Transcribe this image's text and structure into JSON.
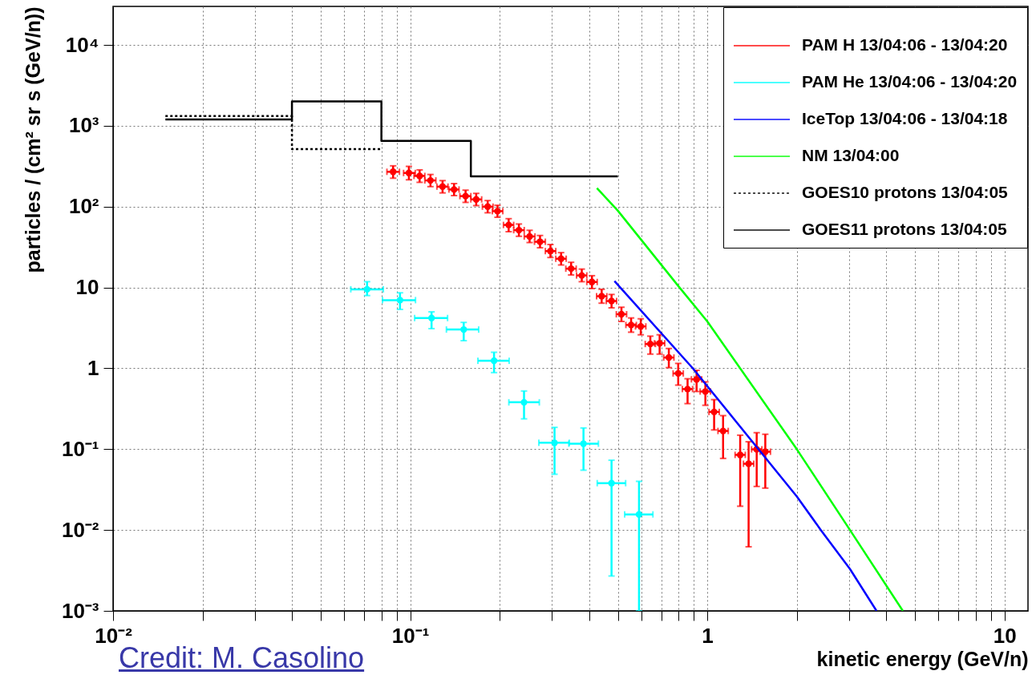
{
  "chart_data": {
    "type": "scatter",
    "xlabel": "kinetic energy (GeV/n)",
    "ylabel": "particles / (cm² sr s (GeV/n))",
    "annotations": [
      "Credit: M. Casolino"
    ],
    "log": "xy",
    "grid": true,
    "legend": "top right",
    "xlim": [
      0.01,
      12
    ],
    "xticks": [
      {
        "value": 0.01,
        "label": "10⁻²"
      },
      {
        "value": 0.02,
        "label": null
      },
      {
        "value": 0.03,
        "label": null
      },
      {
        "value": 0.04,
        "label": null
      },
      {
        "value": 0.05,
        "label": null
      },
      {
        "value": 0.06,
        "label": null
      },
      {
        "value": 0.07,
        "label": null
      },
      {
        "value": 0.08,
        "label": null
      },
      {
        "value": 0.09,
        "label": null
      },
      {
        "value": 0.1,
        "label": "10⁻¹"
      },
      {
        "value": 0.2,
        "label": null
      },
      {
        "value": 0.3,
        "label": null
      },
      {
        "value": 0.4,
        "label": null
      },
      {
        "value": 0.5,
        "label": null
      },
      {
        "value": 0.6,
        "label": null
      },
      {
        "value": 0.7,
        "label": null
      },
      {
        "value": 0.8,
        "label": null
      },
      {
        "value": 0.9,
        "label": null
      },
      1,
      {
        "value": 2,
        "label": null
      },
      {
        "value": 3,
        "label": null
      },
      {
        "value": 4,
        "label": null
      },
      {
        "value": 5,
        "label": null
      },
      {
        "value": 6,
        "label": null
      },
      {
        "value": 7,
        "label": null
      },
      {
        "value": 8,
        "label": null
      },
      {
        "value": 9,
        "label": null
      },
      10
    ],
    "ylim": [
      0.001,
      30000
    ],
    "yticks": [
      {
        "value": 0.001,
        "label": "10⁻³"
      },
      {
        "value": 0.01,
        "label": "10⁻²"
      },
      {
        "value": 0.1,
        "label": "10⁻¹"
      },
      1,
      10,
      {
        "value": 100,
        "label": "10²"
      },
      {
        "value": 1000,
        "label": "10³"
      },
      {
        "value": 10000,
        "label": "10⁴"
      }
    ],
    "series": [
      {
        "name": "PAM H 13/04:06 - 13/04:20",
        "color": "#ff0000",
        "x": [
          0.0876,
          0.099,
          0.1076,
          0.117,
          0.1285,
          0.1405,
          0.1536,
          0.1668,
          0.1823,
          0.1967,
          0.2145,
          0.2322,
          0.2523,
          0.2735,
          0.2965,
          0.322,
          0.348,
          0.378,
          0.409,
          0.441,
          0.476,
          0.514,
          0.554,
          0.597,
          0.643,
          0.691,
          0.742,
          0.798,
          0.858,
          0.92,
          0.985,
          1.054,
          1.13,
          1.29,
          1.377,
          1.466,
          1.567
        ],
        "values": [
          270,
          261,
          240,
          211,
          177,
          163,
          135,
          123,
          100,
          88,
          59.4,
          51.2,
          42.8,
          36.8,
          28.2,
          22.7,
          17.1,
          14.1,
          11.7,
          7.8,
          6.8,
          4.67,
          3.44,
          3.3,
          2.0,
          2.04,
          1.36,
          0.865,
          0.554,
          0.731,
          0.517,
          0.289,
          0.168,
          0.085,
          0.066,
          0.0995,
          0.093
        ],
        "errors": [
          [
            225,
            320
          ],
          [
            215,
            315
          ],
          [
            200,
            285
          ],
          [
            177,
            250
          ],
          [
            148,
            210
          ],
          [
            137,
            193
          ],
          [
            113,
            160
          ],
          [
            103,
            146
          ],
          [
            84,
            119
          ],
          [
            74,
            104
          ],
          [
            49,
            71
          ],
          [
            43,
            61
          ],
          [
            36,
            51
          ],
          [
            31,
            44
          ],
          [
            23.5,
            34
          ],
          [
            19,
            27
          ],
          [
            14.3,
            20.5
          ],
          [
            11.8,
            16.9
          ],
          [
            9.7,
            14
          ],
          [
            6.4,
            9.5
          ],
          [
            5.6,
            8.2
          ],
          [
            3.8,
            5.7
          ],
          [
            2.8,
            4.2
          ],
          [
            2.6,
            4.1
          ],
          [
            1.5,
            2.5
          ],
          [
            1.5,
            2.6
          ],
          [
            1.02,
            1.76
          ],
          [
            0.62,
            1.15
          ],
          [
            0.366,
            0.743
          ],
          [
            0.517,
            0.944
          ],
          [
            0.349,
            0.68
          ],
          [
            0.173,
            0.41
          ],
          [
            0.0769,
            0.26
          ],
          [
            0.0197,
            0.149
          ],
          [
            0.0062,
            0.1235
          ],
          [
            0.0346,
            0.16
          ],
          [
            0.033,
            0.153
          ]
        ],
        "xerrors": [
          [
            0.0835,
            0.092
          ],
          [
            0.095,
            0.104
          ],
          [
            0.103,
            0.112
          ],
          [
            0.112,
            0.122
          ],
          [
            0.123,
            0.134
          ],
          [
            0.135,
            0.146
          ],
          [
            0.147,
            0.16
          ],
          [
            0.16,
            0.174
          ],
          [
            0.175,
            0.19
          ],
          [
            0.189,
            0.205
          ],
          [
            0.206,
            0.223
          ],
          [
            0.223,
            0.242
          ],
          [
            0.242,
            0.263
          ],
          [
            0.262,
            0.285
          ],
          [
            0.285,
            0.309
          ],
          [
            0.309,
            0.335
          ],
          [
            0.334,
            0.362
          ],
          [
            0.363,
            0.393
          ],
          [
            0.393,
            0.426
          ],
          [
            0.424,
            0.459
          ],
          [
            0.457,
            0.495
          ],
          [
            0.494,
            0.535
          ],
          [
            0.532,
            0.577
          ],
          [
            0.573,
            0.621
          ],
          [
            0.618,
            0.669
          ],
          [
            0.664,
            0.719
          ],
          [
            0.713,
            0.772
          ],
          [
            0.767,
            0.83
          ],
          [
            0.824,
            0.892
          ],
          [
            0.884,
            0.957
          ],
          [
            0.946,
            1.025
          ],
          [
            1.013,
            1.097
          ],
          [
            1.086,
            1.176
          ],
          [
            1.24,
            1.342
          ],
          [
            1.323,
            1.433
          ],
          [
            1.409,
            1.526
          ],
          [
            1.506,
            1.631
          ]
        ]
      },
      {
        "name": "PAM He 13/04:06 - 13/04:20",
        "color": "#00ffff",
        "x": [
          0.0716,
          0.0924,
          0.118,
          0.1514,
          0.1915,
          0.2416,
          0.306,
          0.383,
          0.476,
          0.589
        ],
        "values": [
          9.5,
          6.98,
          4.19,
          3.02,
          1.24,
          0.38,
          0.12,
          0.117,
          0.038,
          0.0156
        ],
        "errors": [
          [
            7.95,
            11.8
          ],
          [
            5.36,
            8.6
          ],
          [
            3.1,
            5.0
          ],
          [
            2.2,
            3.7
          ],
          [
            0.886,
            1.58
          ],
          [
            0.237,
            0.525
          ],
          [
            0.049,
            0.186
          ],
          [
            0.055,
            0.183
          ],
          [
            0.0027,
            0.073
          ],
          [
            0.001,
            0.04
          ]
        ],
        "xerrors": [
          [
            0.0631,
            0.0812
          ],
          [
            0.0807,
            0.1042
          ],
          [
            0.1035,
            0.1336
          ],
          [
            0.1324,
            0.17
          ],
          [
            0.169,
            0.2153
          ],
          [
            0.2148,
            0.272
          ],
          [
            0.271,
            0.343
          ],
          [
            0.342,
            0.43
          ],
          [
            0.426,
            0.531
          ],
          [
            0.527,
            0.656
          ]
        ]
      },
      {
        "name": "IceTop 13/04:06 - 13/04:18",
        "type": "line",
        "color": "#0000ff",
        "x": [
          0.487,
          0.894,
          2.0,
          2.41,
          3.02,
          3.71
        ],
        "values": [
          12,
          1.0,
          0.026,
          0.01,
          0.0033,
          0.001
        ]
      },
      {
        "name": "NM 13/04:00",
        "type": "line",
        "color": "#00ff00",
        "x": [
          0.425,
          0.5,
          0.806,
          1.0,
          2.0,
          3.02,
          4.55
        ],
        "values": [
          170,
          89,
          10,
          3.8,
          0.1,
          0.01,
          0.001
        ]
      },
      {
        "name": "GOES10 protons 13/04:05",
        "type": "step",
        "color": "#000000",
        "line_style": "dotted",
        "x": [
          0.015,
          0.04,
          0.08
        ],
        "values": [
          1320,
          515,
          515
        ]
      },
      {
        "name": "GOES11 protons 13/04:05",
        "type": "step",
        "color": "#000000",
        "line_style": "solid",
        "x": [
          0.015,
          0.04,
          0.08,
          0.16,
          0.5
        ],
        "values": [
          1200,
          2000,
          650,
          237,
          237
        ]
      }
    ]
  }
}
